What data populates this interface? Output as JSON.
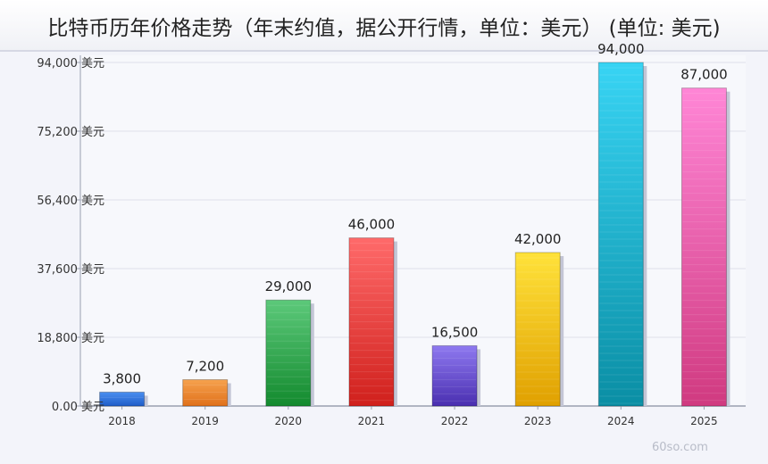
{
  "chart_data": {
    "type": "bar",
    "title": "比特币历年价格走势（年末约值，据公开行情，单位：美元） (单位: 美元)",
    "xlabel": "",
    "ylabel": "",
    "unit": "美元",
    "categories": [
      "2018",
      "2019",
      "2020",
      "2021",
      "2022",
      "2023",
      "2024",
      "2025"
    ],
    "values": [
      3800,
      7200,
      29000,
      46000,
      16500,
      42000,
      94000,
      87000
    ],
    "value_labels": [
      "3,800",
      "7,200",
      "29,000",
      "46,000",
      "16,500",
      "42,000",
      "94,000",
      "87,000"
    ],
    "yticks": [
      0,
      18800,
      37600,
      56400,
      75200,
      94000
    ],
    "ytick_labels": [
      "0.00 美元",
      "18,800 美元",
      "37,600 美元",
      "56,400 美元",
      "75,200 美元",
      "94,000 美元"
    ],
    "ylim": [
      0,
      94000
    ],
    "grid": true,
    "legend": "none",
    "colors": [
      [
        "#4a8ff0",
        "#1f5cc8"
      ],
      [
        "#f6a24e",
        "#e0701a"
      ],
      [
        "#5cc97a",
        "#138a2e"
      ],
      [
        "#ff6a6a",
        "#d0201c"
      ],
      [
        "#8e79f0",
        "#4a2fb0"
      ],
      [
        "#ffe23a",
        "#e0a000"
      ],
      [
        "#38d4f4",
        "#0a8ea4"
      ],
      [
        "#ff86d6",
        "#d03a80"
      ]
    ]
  },
  "watermark": "60so.com"
}
